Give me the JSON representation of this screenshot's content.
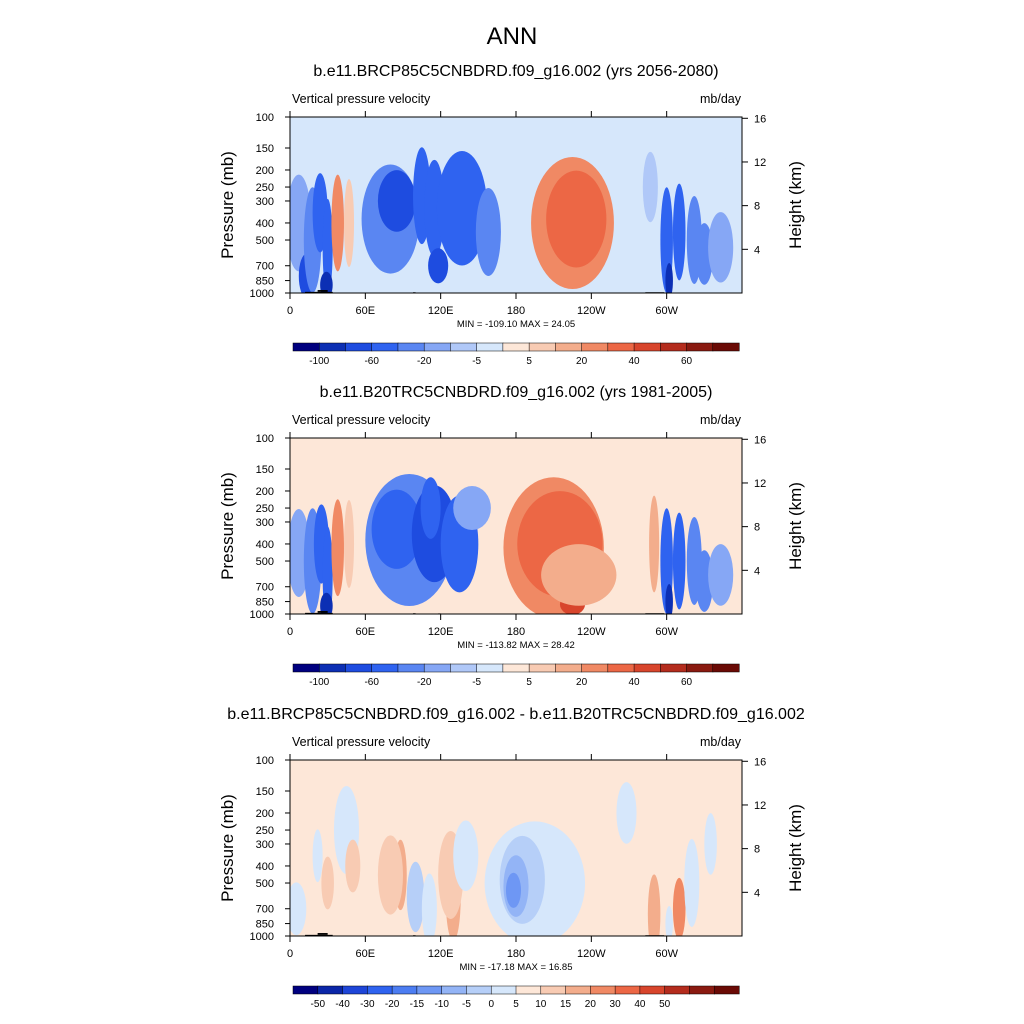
{
  "figure": {
    "title": "ANN"
  },
  "colors": {
    "abs_scale": [
      "#00007f",
      "#0c2fb4",
      "#1e4ce0",
      "#2f63f0",
      "#5a86f2",
      "#86a7f5",
      "#b0c8f8",
      "#d6e7fb",
      "#fde7d8",
      "#f8cbb3",
      "#f3ad8c",
      "#f08964",
      "#ec6745",
      "#d8452c",
      "#b42c1d",
      "#8a1a10",
      "#6a0a05"
    ],
    "diff_scale": [
      "#00007f",
      "#0a26a8",
      "#1e45d8",
      "#2f63f0",
      "#4c7df2",
      "#6e97f4",
      "#93b4f6",
      "#b6cff8",
      "#d6e7fb",
      "#fde7d8",
      "#f8cbb3",
      "#f3ad8c",
      "#f08964",
      "#ec6745",
      "#d8452c",
      "#b42c1d",
      "#8a1a10",
      "#6a0a05"
    ]
  },
  "chart_data": [
    {
      "type": "heatmap",
      "title": "b.e11.BRCP85C5CNBDRD.f09_g16.002 (yrs 2056-2080)",
      "left_label": "Vertical pressure velocity",
      "right_label": "mb/day",
      "ylabel": "Pressure (mb)",
      "y2label": "Height (km)",
      "xticks": [
        "0",
        "60E",
        "120E",
        "180",
        "120W",
        "60W"
      ],
      "xtick_values": [
        0,
        60,
        120,
        180,
        240,
        300
      ],
      "xlim": [
        0,
        360
      ],
      "yticks": [
        "100",
        "150",
        "200",
        "250",
        "300",
        "400",
        "500",
        "700",
        "850",
        "1000"
      ],
      "ytick_values": [
        100,
        150,
        200,
        250,
        300,
        400,
        500,
        700,
        850,
        1000
      ],
      "ylim": [
        1000,
        100
      ],
      "y2ticks": [
        "4",
        "8",
        "12",
        "16"
      ],
      "y2tick_values": [
        4,
        8,
        12,
        16
      ],
      "stats": "MIN = -109.10  MAX =  24.05",
      "colorbar_labels": [
        "-100",
        "-60",
        "-20",
        "-5",
        "5",
        "20",
        "40",
        "60"
      ],
      "colorbar_label_index": [
        1,
        3,
        5,
        7,
        9,
        11,
        13,
        15
      ],
      "colorbar_segments": 17,
      "fields": {
        "base": 7,
        "blobs": [
          {
            "lon": 7,
            "p": 400,
            "w": 10,
            "h": 0.55,
            "l": 5
          },
          {
            "lon": 13,
            "p": 800,
            "w": 6,
            "h": 0.25,
            "l": 2
          },
          {
            "lon": 18,
            "p": 500,
            "w": 7,
            "h": 0.6,
            "l": 4
          },
          {
            "lon": 24,
            "p": 350,
            "w": 6,
            "h": 0.45,
            "l": 3
          },
          {
            "lon": 30,
            "p": 550,
            "w": 4,
            "h": 0.55,
            "l": 3
          },
          {
            "lon": 29,
            "p": 900,
            "w": 5,
            "h": 0.15,
            "l": 1
          },
          {
            "lon": 38,
            "p": 400,
            "w": 5,
            "h": 0.55,
            "l": 11
          },
          {
            "lon": 47,
            "p": 400,
            "w": 4,
            "h": 0.5,
            "l": 9
          },
          {
            "lon": 80,
            "p": 380,
            "w": 23,
            "h": 0.62,
            "l": 4
          },
          {
            "lon": 85,
            "p": 300,
            "w": 15,
            "h": 0.35,
            "l": 2
          },
          {
            "lon": 105,
            "p": 280,
            "w": 7,
            "h": 0.55,
            "l": 3
          },
          {
            "lon": 115,
            "p": 330,
            "w": 8,
            "h": 0.55,
            "l": 3
          },
          {
            "lon": 118,
            "p": 700,
            "w": 8,
            "h": 0.2,
            "l": 2
          },
          {
            "lon": 137,
            "p": 330,
            "w": 20,
            "h": 0.65,
            "l": 3
          },
          {
            "lon": 158,
            "p": 450,
            "w": 10,
            "h": 0.5,
            "l": 4
          },
          {
            "lon": 225,
            "p": 400,
            "w": 33,
            "h": 0.75,
            "l": 11
          },
          {
            "lon": 228,
            "p": 380,
            "w": 24,
            "h": 0.55,
            "l": 12
          },
          {
            "lon": 300,
            "p": 500,
            "w": 5,
            "h": 0.6,
            "l": 3
          },
          {
            "lon": 302,
            "p": 850,
            "w": 3,
            "h": 0.2,
            "l": 1
          },
          {
            "lon": 310,
            "p": 450,
            "w": 5,
            "h": 0.55,
            "l": 3
          },
          {
            "lon": 322,
            "p": 500,
            "w": 6,
            "h": 0.5,
            "l": 4
          },
          {
            "lon": 330,
            "p": 600,
            "w": 7,
            "h": 0.35,
            "l": 4
          },
          {
            "lon": 343,
            "p": 550,
            "w": 10,
            "h": 0.4,
            "l": 5
          },
          {
            "lon": 287,
            "p": 250,
            "w": 6,
            "h": 0.4,
            "l": 6
          },
          {
            "lon": 355,
            "p": 150,
            "w": 10,
            "h": 0.2,
            "l": 7
          }
        ]
      },
      "topography": [
        [
          12,
          34,
          1000,
          985
        ],
        [
          22,
          30,
          985,
          962
        ],
        [
          98,
          100,
          1000,
          990
        ],
        [
          283,
          298,
          1000,
          990
        ]
      ]
    },
    {
      "type": "heatmap",
      "title": "b.e11.B20TRC5CNBDRD.f09_g16.002 (yrs 1981-2005)",
      "left_label": "Vertical pressure velocity",
      "right_label": "mb/day",
      "ylabel": "Pressure (mb)",
      "y2label": "Height (km)",
      "xticks": [
        "0",
        "60E",
        "120E",
        "180",
        "120W",
        "60W"
      ],
      "xtick_values": [
        0,
        60,
        120,
        180,
        240,
        300
      ],
      "xlim": [
        0,
        360
      ],
      "yticks": [
        "100",
        "150",
        "200",
        "250",
        "300",
        "400",
        "500",
        "700",
        "850",
        "1000"
      ],
      "ytick_values": [
        100,
        150,
        200,
        250,
        300,
        400,
        500,
        700,
        850,
        1000
      ],
      "ylim": [
        1000,
        100
      ],
      "y2ticks": [
        "4",
        "8",
        "12",
        "16"
      ],
      "y2tick_values": [
        4,
        8,
        12,
        16
      ],
      "stats": "MIN = -113.82  MAX =  28.42",
      "colorbar_labels": [
        "-100",
        "-60",
        "-20",
        "-5",
        "5",
        "20",
        "40",
        "60"
      ],
      "colorbar_label_index": [
        1,
        3,
        5,
        7,
        9,
        11,
        13,
        15
      ],
      "colorbar_segments": 17,
      "fields": {
        "base": 8,
        "blobs": [
          {
            "lon": 7,
            "p": 450,
            "w": 9,
            "h": 0.5,
            "l": 5
          },
          {
            "lon": 18,
            "p": 500,
            "w": 7,
            "h": 0.6,
            "l": 4
          },
          {
            "lon": 25,
            "p": 400,
            "w": 6,
            "h": 0.45,
            "l": 3
          },
          {
            "lon": 30,
            "p": 600,
            "w": 4,
            "h": 0.55,
            "l": 3
          },
          {
            "lon": 29,
            "p": 900,
            "w": 5,
            "h": 0.15,
            "l": 1
          },
          {
            "lon": 38,
            "p": 420,
            "w": 5,
            "h": 0.55,
            "l": 11
          },
          {
            "lon": 47,
            "p": 400,
            "w": 4,
            "h": 0.5,
            "l": 9
          },
          {
            "lon": 95,
            "p": 380,
            "w": 35,
            "h": 0.75,
            "l": 4
          },
          {
            "lon": 85,
            "p": 330,
            "w": 20,
            "h": 0.45,
            "l": 3
          },
          {
            "lon": 115,
            "p": 350,
            "w": 18,
            "h": 0.55,
            "l": 2
          },
          {
            "lon": 112,
            "p": 250,
            "w": 8,
            "h": 0.35,
            "l": 3
          },
          {
            "lon": 135,
            "p": 400,
            "w": 15,
            "h": 0.55,
            "l": 3
          },
          {
            "lon": 145,
            "p": 250,
            "w": 15,
            "h": 0.25,
            "l": 5
          },
          {
            "lon": 210,
            "p": 420,
            "w": 40,
            "h": 0.8,
            "l": 11
          },
          {
            "lon": 215,
            "p": 400,
            "w": 34,
            "h": 0.6,
            "l": 12
          },
          {
            "lon": 225,
            "p": 880,
            "w": 10,
            "h": 0.12,
            "l": 13
          },
          {
            "lon": 230,
            "p": 600,
            "w": 30,
            "h": 0.35,
            "l": 10
          },
          {
            "lon": 290,
            "p": 400,
            "w": 4,
            "h": 0.55,
            "l": 10
          },
          {
            "lon": 300,
            "p": 500,
            "w": 5,
            "h": 0.6,
            "l": 3
          },
          {
            "lon": 302,
            "p": 850,
            "w": 3,
            "h": 0.2,
            "l": 1
          },
          {
            "lon": 310,
            "p": 500,
            "w": 5,
            "h": 0.55,
            "l": 3
          },
          {
            "lon": 322,
            "p": 500,
            "w": 6,
            "h": 0.5,
            "l": 4
          },
          {
            "lon": 330,
            "p": 650,
            "w": 7,
            "h": 0.35,
            "l": 4
          },
          {
            "lon": 343,
            "p": 600,
            "w": 10,
            "h": 0.35,
            "l": 5
          }
        ]
      },
      "topography": [
        [
          12,
          34,
          1000,
          985
        ],
        [
          22,
          30,
          985,
          962
        ],
        [
          98,
          100,
          1000,
          990
        ],
        [
          118,
          120,
          1000,
          992
        ],
        [
          283,
          298,
          1000,
          990
        ]
      ]
    },
    {
      "type": "heatmap",
      "title": "b.e11.BRCP85C5CNBDRD.f09_g16.002 - b.e11.B20TRC5CNBDRD.f09_g16.002",
      "left_label": "Vertical pressure velocity",
      "right_label": "mb/day",
      "ylabel": "Pressure (mb)",
      "y2label": "Height (km)",
      "xticks": [
        "0",
        "60E",
        "120E",
        "180",
        "120W",
        "60W"
      ],
      "xtick_values": [
        0,
        60,
        120,
        180,
        240,
        300
      ],
      "xlim": [
        0,
        360
      ],
      "yticks": [
        "100",
        "150",
        "200",
        "250",
        "300",
        "400",
        "500",
        "700",
        "850",
        "1000"
      ],
      "ytick_values": [
        100,
        150,
        200,
        250,
        300,
        400,
        500,
        700,
        850,
        1000
      ],
      "ylim": [
        1000,
        100
      ],
      "y2ticks": [
        "4",
        "8",
        "12",
        "16"
      ],
      "y2tick_values": [
        4,
        8,
        12,
        16
      ],
      "stats": "MIN = -17.18  MAX =  16.85",
      "colorbar_labels": [
        "-50",
        "-40",
        "-30",
        "-20",
        "-15",
        "-10",
        "-5",
        "0",
        "5",
        "10",
        "15",
        "20",
        "30",
        "40",
        "50"
      ],
      "colorbar_label_index": [
        1,
        2,
        3,
        4,
        5,
        6,
        7,
        8,
        9,
        10,
        11,
        12,
        13,
        14,
        15
      ],
      "colorbar_segments": 18,
      "fields": {
        "base": 9,
        "blobs": [
          {
            "lon": 5,
            "p": 700,
            "w": 8,
            "h": 0.3,
            "l": 8
          },
          {
            "lon": 22,
            "p": 350,
            "w": 4,
            "h": 0.3,
            "l": 8
          },
          {
            "lon": 30,
            "p": 500,
            "w": 5,
            "h": 0.3,
            "l": 10
          },
          {
            "lon": 45,
            "p": 250,
            "w": 10,
            "h": 0.5,
            "l": 8
          },
          {
            "lon": 50,
            "p": 400,
            "w": 6,
            "h": 0.3,
            "l": 10
          },
          {
            "lon": 88,
            "p": 450,
            "w": 5,
            "h": 0.4,
            "l": 11
          },
          {
            "lon": 80,
            "p": 450,
            "w": 10,
            "h": 0.45,
            "l": 10
          },
          {
            "lon": 100,
            "p": 600,
            "w": 7,
            "h": 0.4,
            "l": 7
          },
          {
            "lon": 111,
            "p": 700,
            "w": 6,
            "h": 0.4,
            "l": 8
          },
          {
            "lon": 130,
            "p": 600,
            "w": 6,
            "h": 0.5,
            "l": 11
          },
          {
            "lon": 128,
            "p": 450,
            "w": 10,
            "h": 0.5,
            "l": 10
          },
          {
            "lon": 140,
            "p": 350,
            "w": 10,
            "h": 0.4,
            "l": 8
          },
          {
            "lon": 195,
            "p": 500,
            "w": 40,
            "h": 0.7,
            "l": 8
          },
          {
            "lon": 185,
            "p": 480,
            "w": 18,
            "h": 0.5,
            "l": 7
          },
          {
            "lon": 180,
            "p": 520,
            "w": 10,
            "h": 0.35,
            "l": 6
          },
          {
            "lon": 178,
            "p": 550,
            "w": 6,
            "h": 0.2,
            "l": 5
          },
          {
            "lon": 268,
            "p": 200,
            "w": 8,
            "h": 0.35,
            "l": 8
          },
          {
            "lon": 290,
            "p": 750,
            "w": 5,
            "h": 0.45,
            "l": 11
          },
          {
            "lon": 310,
            "p": 700,
            "w": 5,
            "h": 0.35,
            "l": 12
          },
          {
            "lon": 302,
            "p": 850,
            "w": 3,
            "h": 0.2,
            "l": 8
          },
          {
            "lon": 320,
            "p": 500,
            "w": 6,
            "h": 0.5,
            "l": 8
          },
          {
            "lon": 335,
            "p": 300,
            "w": 5,
            "h": 0.35,
            "l": 8
          }
        ]
      },
      "topography": [
        [
          12,
          34,
          1000,
          985
        ],
        [
          22,
          30,
          985,
          962
        ],
        [
          98,
          100,
          1000,
          990
        ],
        [
          283,
          298,
          1000,
          990
        ]
      ]
    }
  ]
}
